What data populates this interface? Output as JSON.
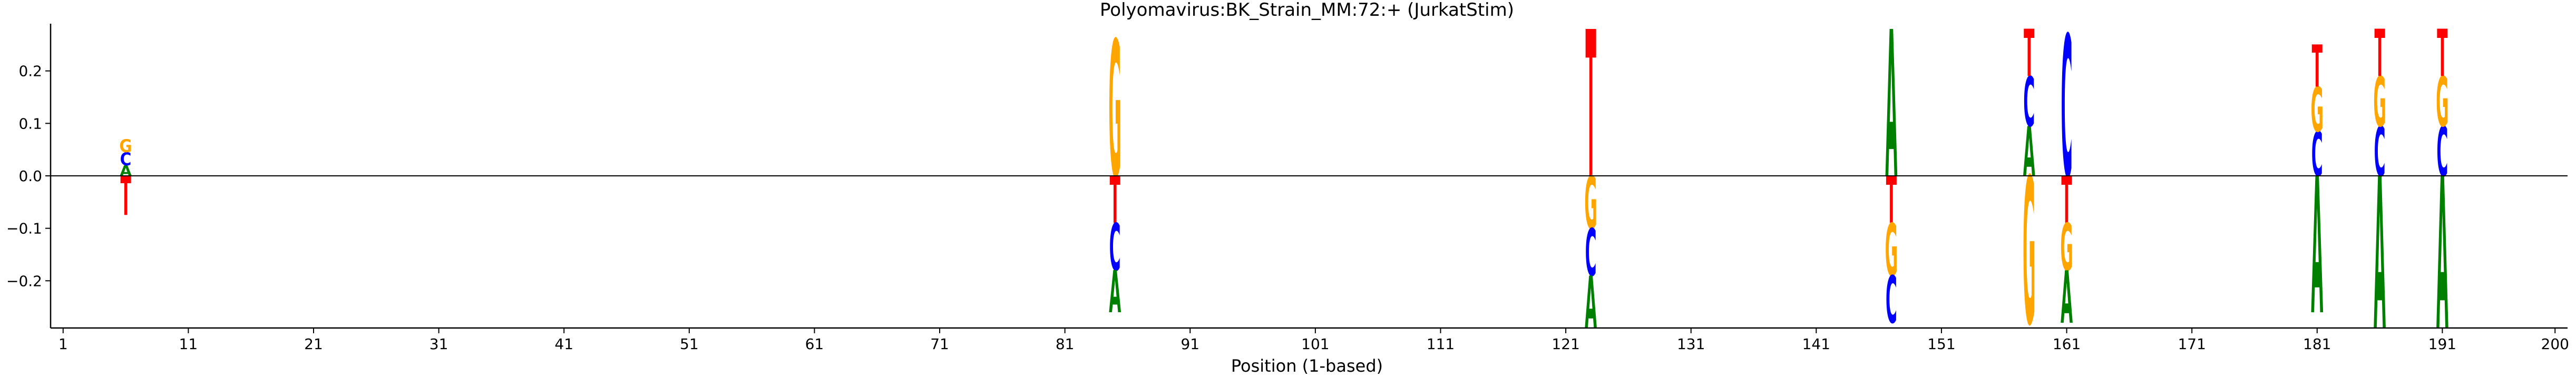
{
  "chart_data": {
    "type": "sequence-logo",
    "title": "Polyomavirus:BK_Strain_MM:72:+  (JurkatStim)",
    "xlabel": "Position (1-based)",
    "ylabel": "",
    "xlim": [
      0,
      201
    ],
    "ylim": [
      -0.29,
      0.29
    ],
    "x_ticks": [
      1,
      11,
      21,
      31,
      41,
      51,
      61,
      71,
      81,
      91,
      101,
      111,
      121,
      131,
      141,
      151,
      161,
      171,
      181,
      191,
      200
    ],
    "y_ticks": [
      -0.2,
      -0.1,
      0.0,
      0.1,
      0.2
    ],
    "y_tick_labels": [
      "−0.2",
      "−0.1",
      "0.0",
      "0.1",
      "0.2"
    ],
    "grid": false,
    "zero_line": true,
    "colors": {
      "A": "#008000",
      "C": "#0000ff",
      "G": "#ffa500",
      "T": "#ff0000"
    },
    "positions": [
      {
        "x": 6,
        "letters": [
          {
            "base": "A",
            "y0": 0.0,
            "y1": 0.02
          },
          {
            "base": "C",
            "y0": 0.02,
            "y1": 0.045
          },
          {
            "base": "G",
            "y0": 0.045,
            "y1": 0.07
          },
          {
            "base": "T",
            "y0": 0.0,
            "y1": -0.075
          }
        ]
      },
      {
        "x": 85,
        "letters": [
          {
            "base": "G",
            "y0": 0.0,
            "y1": 0.26
          },
          {
            "base": "T",
            "y0": 0.0,
            "y1": -0.09
          },
          {
            "base": "C",
            "y0": -0.09,
            "y1": -0.18
          },
          {
            "base": "A",
            "y0": -0.18,
            "y1": -0.26
          }
        ]
      },
      {
        "x": 123,
        "letters": [
          {
            "base": "T",
            "y0": 0.0,
            "y1": 0.28
          },
          {
            "base": "G",
            "y0": 0.0,
            "y1": -0.1
          },
          {
            "base": "C",
            "y0": -0.1,
            "y1": -0.19
          },
          {
            "base": "A",
            "y0": -0.19,
            "y1": -0.29
          }
        ]
      },
      {
        "x": 147,
        "letters": [
          {
            "base": "A",
            "y0": 0.0,
            "y1": 0.28
          },
          {
            "base": "T",
            "y0": 0.0,
            "y1": -0.09
          },
          {
            "base": "G",
            "y0": -0.09,
            "y1": -0.19
          },
          {
            "base": "C",
            "y0": -0.19,
            "y1": -0.28
          }
        ]
      },
      {
        "x": 158,
        "letters": [
          {
            "base": "A",
            "y0": 0.0,
            "y1": 0.095
          },
          {
            "base": "C",
            "y0": 0.095,
            "y1": 0.19
          },
          {
            "base": "T",
            "y0": 0.19,
            "y1": 0.28
          },
          {
            "base": "G",
            "y0": 0.0,
            "y1": -0.28
          }
        ]
      },
      {
        "x": 161,
        "letters": [
          {
            "base": "C",
            "y0": 0.0,
            "y1": 0.27
          },
          {
            "base": "T",
            "y0": 0.0,
            "y1": -0.09
          },
          {
            "base": "G",
            "y0": -0.09,
            "y1": -0.18
          },
          {
            "base": "A",
            "y0": -0.18,
            "y1": -0.28
          }
        ]
      },
      {
        "x": 181,
        "letters": [
          {
            "base": "C",
            "y0": 0.0,
            "y1": 0.085
          },
          {
            "base": "G",
            "y0": 0.085,
            "y1": 0.17
          },
          {
            "base": "T",
            "y0": 0.17,
            "y1": 0.25
          },
          {
            "base": "A",
            "y0": 0.0,
            "y1": -0.26
          }
        ]
      },
      {
        "x": 186,
        "letters": [
          {
            "base": "C",
            "y0": 0.0,
            "y1": 0.095
          },
          {
            "base": "G",
            "y0": 0.095,
            "y1": 0.19
          },
          {
            "base": "T",
            "y0": 0.19,
            "y1": 0.28
          },
          {
            "base": "A",
            "y0": 0.0,
            "y1": -0.29
          }
        ]
      },
      {
        "x": 191,
        "letters": [
          {
            "base": "C",
            "y0": 0.0,
            "y1": 0.095
          },
          {
            "base": "G",
            "y0": 0.095,
            "y1": 0.19
          },
          {
            "base": "T",
            "y0": 0.19,
            "y1": 0.28
          },
          {
            "base": "A",
            "y0": 0.0,
            "y1": -0.29
          }
        ]
      }
    ]
  }
}
